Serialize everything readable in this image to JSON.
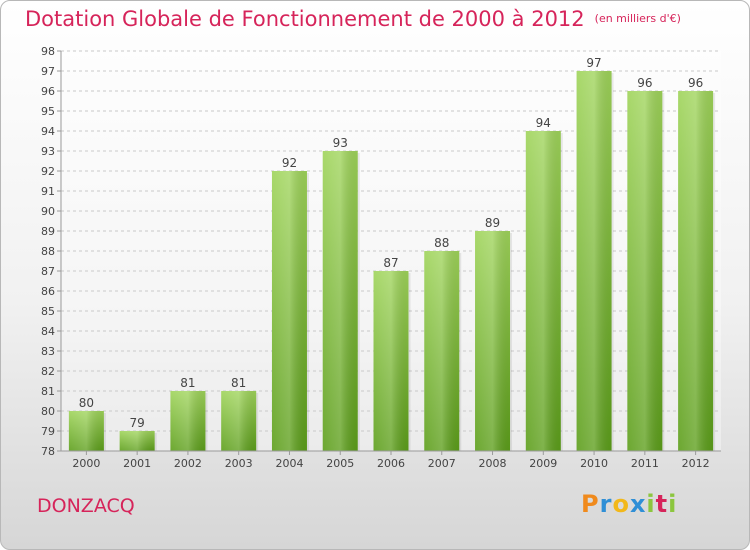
{
  "title": "Dotation Globale de Fonctionnement de 2000 à 2012",
  "unit": "(en milliers d'€)",
  "town": "DONZACQ",
  "logo": {
    "p": "P",
    "r": "r",
    "o": "o",
    "x": "x",
    "i": "i",
    "t": "t",
    "i2": "i"
  },
  "colors": {
    "title": "#d6245a",
    "bar_top": "#9fd45a",
    "bar_bottom": "#5c9e1a"
  },
  "chart_data": {
    "type": "bar",
    "categories": [
      "2000",
      "2001",
      "2002",
      "2003",
      "2004",
      "2005",
      "2006",
      "2007",
      "2008",
      "2009",
      "2010",
      "2011",
      "2012"
    ],
    "values": [
      80,
      79,
      81,
      81,
      92,
      93,
      87,
      88,
      89,
      94,
      97,
      96,
      96
    ],
    "title": "Dotation Globale de Fonctionnement de 2000 à 2012",
    "subtitle": "(en milliers d'€)",
    "ylim": [
      78,
      98
    ],
    "yticks": [
      78,
      79,
      80,
      81,
      82,
      83,
      84,
      85,
      86,
      87,
      88,
      89,
      90,
      91,
      92,
      93,
      94,
      95,
      96,
      97,
      98
    ],
    "grid": true,
    "data_labels": true
  }
}
